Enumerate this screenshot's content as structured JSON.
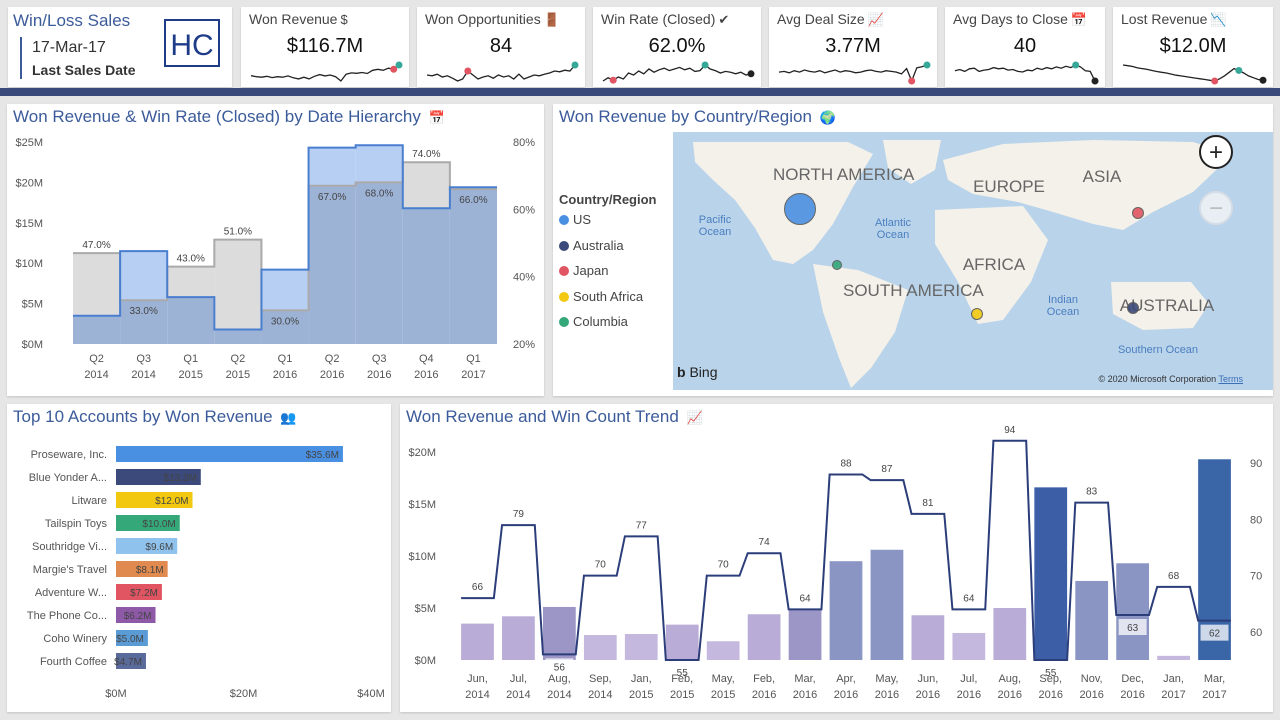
{
  "header": {
    "title": "Win/Loss Sales",
    "date": "17-Mar-17",
    "date_caption": "Last Sales Date",
    "logo_text": "HC"
  },
  "kpis": [
    {
      "title": "Won Revenue",
      "icon": "dollar-icon",
      "glyph": "$",
      "value": "$116.7M",
      "spark": [
        45,
        40,
        38,
        42,
        36,
        40,
        38,
        44,
        35,
        30,
        38,
        30,
        42,
        50,
        44,
        48,
        40,
        20,
        52,
        58,
        56,
        60,
        55,
        70,
        75,
        70,
        80,
        75,
        95
      ],
      "markers": [
        {
          "i": 27,
          "color": "#e05561"
        },
        {
          "i": 28,
          "color": "#35a89a"
        }
      ]
    },
    {
      "title": "Won Opportunities",
      "icon": "door-icon",
      "glyph": "🚪",
      "value": "84",
      "spark": [
        60,
        58,
        62,
        55,
        58,
        52,
        45,
        50,
        70,
        60,
        50,
        55,
        58,
        52,
        60,
        55,
        58,
        50,
        62,
        50,
        55,
        60,
        58,
        62,
        65,
        70,
        68,
        72,
        70,
        85
      ],
      "markers": [
        {
          "i": 8,
          "color": "#e05561"
        },
        {
          "i": 29,
          "color": "#35a89a"
        }
      ]
    },
    {
      "title": "Win Rate (Closed)",
      "icon": "check-icon",
      "glyph": "✔",
      "value": "62.0%",
      "spark": [
        40,
        48,
        42,
        50,
        45,
        60,
        55,
        65,
        58,
        70,
        62,
        68,
        72,
        66,
        70,
        74,
        68,
        72,
        64,
        66,
        80,
        70,
        66,
        60,
        64,
        62,
        58,
        62,
        55,
        58
      ],
      "markers": [
        {
          "i": 2,
          "color": "#e05561"
        },
        {
          "i": 20,
          "color": "#35a89a"
        },
        {
          "i": 29,
          "color": "#222"
        }
      ]
    },
    {
      "title": "Avg Deal Size",
      "icon": "trend-chart-icon",
      "glyph": "📈",
      "value": "3.77M",
      "spark": [
        60,
        62,
        58,
        64,
        60,
        66,
        62,
        60,
        64,
        58,
        62,
        66,
        60,
        64,
        62,
        58,
        60,
        64,
        66,
        62,
        60,
        64,
        62,
        60,
        55,
        70,
        35,
        72,
        75,
        80
      ],
      "markers": [
        {
          "i": 26,
          "color": "#e05561"
        },
        {
          "i": 29,
          "color": "#35a89a"
        }
      ]
    },
    {
      "title": "Avg Days to Close",
      "icon": "calendar-icon",
      "glyph": "📅",
      "value": "40",
      "spark": [
        62,
        66,
        60,
        68,
        70,
        60,
        64,
        66,
        72,
        68,
        70,
        64,
        66,
        60,
        58,
        64,
        62,
        70,
        66,
        72,
        68,
        74,
        70,
        76,
        72,
        80,
        74,
        62,
        60,
        30
      ],
      "markers": [
        {
          "i": 25,
          "color": "#35a89a"
        },
        {
          "i": 29,
          "color": "#222"
        }
      ]
    },
    {
      "title": "Lost Revenue",
      "icon": "down-trend-icon",
      "glyph": "📉",
      "value": "$12.0M",
      "spark": [
        80,
        78,
        76,
        72,
        70,
        68,
        65,
        62,
        60,
        58,
        55,
        52,
        50,
        48,
        46,
        44,
        42,
        40,
        38,
        36,
        42,
        50,
        60,
        70,
        65,
        58,
        50,
        45,
        40,
        38
      ],
      "markers": [
        {
          "i": 19,
          "color": "#e05561"
        },
        {
          "i": 24,
          "color": "#35a89a"
        },
        {
          "i": 29,
          "color": "#222"
        }
      ]
    }
  ],
  "panels": {
    "date_hierarchy": {
      "title": "Won Revenue & Win Rate (Closed) by Date Hierarchy",
      "icon": "calendar-icon",
      "glyph": "📅"
    },
    "map": {
      "title": "Won Revenue by Country/Region",
      "icon": "globe-icon",
      "glyph": "🌍"
    },
    "top_accounts": {
      "title": "Top 10 Accounts by Won Revenue",
      "icon": "people-icon",
      "glyph": "👥"
    },
    "trend": {
      "title": "Won Revenue and Win Count Trend",
      "icon": "trend-chart-icon",
      "glyph": "📈"
    }
  },
  "map": {
    "legend_title": "Country/Region",
    "legend": [
      {
        "name": "US",
        "color": "#4a90e2"
      },
      {
        "name": "Australia",
        "color": "#3b4a7a"
      },
      {
        "name": "Japan",
        "color": "#e05561"
      },
      {
        "name": "South Africa",
        "color": "#f2c811"
      },
      {
        "name": "Columbia",
        "color": "#35a87a"
      }
    ],
    "continents": [
      "NORTH AMERICA",
      "EUROPE",
      "ASIA",
      "AFRICA",
      "SOUTH AMERICA",
      "AUSTRALIA"
    ],
    "oceans": [
      "Pacific Ocean",
      "Atlantic Ocean",
      "Indian Ocean",
      "Southern Ocean"
    ],
    "bing": "Bing",
    "copyright": "© 2020 Microsoft Corporation",
    "terms": "Terms",
    "zoom_in": "+",
    "zoom_out": "−"
  },
  "chart_data": [
    {
      "type": "bar",
      "title": "Won Revenue & Win Rate (Closed) by Date Hierarchy",
      "categories": [
        "Q2 2014",
        "Q3 2014",
        "Q1 2015",
        "Q2 2015",
        "Q1 2016",
        "Q2 2016",
        "Q3 2016",
        "Q4 2016",
        "Q1 2017"
      ],
      "cat_line1": [
        "Q2",
        "Q3",
        "Q1",
        "Q2",
        "Q1",
        "Q2",
        "Q3",
        "Q4",
        "Q1"
      ],
      "cat_line2": [
        "2014",
        "2014",
        "2015",
        "2015",
        "2016",
        "2016",
        "2016",
        "2016",
        "2017"
      ],
      "series": [
        {
          "name": "Won Revenue",
          "values": [
            3.5,
            11.5,
            5.8,
            1.8,
            9.2,
            24.3,
            24.6,
            16.8,
            19.4
          ],
          "unit": "$M"
        },
        {
          "name": "Win Rate (Closed)",
          "values": [
            47.0,
            33.0,
            43.0,
            51.0,
            30.0,
            67.0,
            68.0,
            74.0,
            66.0
          ],
          "unit": "%"
        }
      ],
      "rate_labels": [
        "47.0%",
        "33.0%",
        "43.0%",
        "51.0%",
        "30.0%",
        "67.0%",
        "68.0%",
        "74.0%",
        "66.0%"
      ],
      "y_left_ticks": [
        "$0M",
        "$5M",
        "$10M",
        "$15M",
        "$20M",
        "$25M"
      ],
      "y_right_ticks": [
        "20%",
        "40%",
        "60%",
        "80%"
      ],
      "ylim": [
        0,
        25
      ],
      "y2lim": [
        20,
        80
      ]
    },
    {
      "type": "bar",
      "title": "Top 10 Accounts by Won Revenue",
      "orientation": "horizontal",
      "categories": [
        "Proseware, Inc.",
        "Blue Yonder A...",
        "Litware",
        "Tailspin Toys",
        "Southridge Vi...",
        "Margie's Travel",
        "Adventure W...",
        "The Phone Co...",
        "Coho Winery",
        "Fourth Coffee"
      ],
      "values": [
        35.6,
        13.3,
        12.0,
        10.0,
        9.6,
        8.1,
        7.2,
        6.2,
        5.0,
        4.7
      ],
      "labels": [
        "$35.6M",
        "$13.3M",
        "$12.0M",
        "$10.0M",
        "$9.6M",
        "$8.1M",
        "$7.2M",
        "$6.2M",
        "$5.0M",
        "$4.7M"
      ],
      "colors": [
        "#4a90e2",
        "#3b4a7a",
        "#f2c811",
        "#35a87a",
        "#8fc3ee",
        "#e08a4f",
        "#e05561",
        "#8e5aa8",
        "#5b9bd5",
        "#5a6a9a"
      ],
      "x_ticks": [
        "$0M",
        "$20M",
        "$40M"
      ],
      "xlim": [
        0,
        40
      ]
    },
    {
      "type": "bar",
      "title": "Won Revenue and Win Count Trend",
      "categories": [
        "Jun, 2014",
        "Jul, 2014",
        "Aug, 2014",
        "Sep, 2014",
        "Jan, 2015",
        "Feb, 2015",
        "May, 2015",
        "Feb, 2016",
        "Mar, 2016",
        "Apr, 2016",
        "May, 2016",
        "Jun, 2016",
        "Jul, 2016",
        "Aug, 2016",
        "Sep, 2016",
        "Nov, 2016",
        "Dec, 2016",
        "Jan, 2017",
        "Mar, 2017"
      ],
      "cat_line1": [
        "Jun,",
        "Jul,",
        "Aug,",
        "Sep,",
        "Jan,",
        "Feb,",
        "May,",
        "Feb,",
        "Mar,",
        "Apr,",
        "May,",
        "Jun,",
        "Jul,",
        "Aug,",
        "Sep,",
        "Nov,",
        "Dec,",
        "Jan,",
        "Mar,"
      ],
      "cat_line2": [
        "2014",
        "2014",
        "2014",
        "2014",
        "2015",
        "2015",
        "2015",
        "2016",
        "2016",
        "2016",
        "2016",
        "2016",
        "2016",
        "2016",
        "2016",
        "2016",
        "2016",
        "2017",
        "2017"
      ],
      "series": [
        {
          "name": "Won Revenue",
          "values": [
            3.5,
            4.2,
            5.1,
            2.4,
            2.5,
            3.4,
            1.8,
            4.4,
            4.8,
            9.5,
            10.6,
            4.3,
            2.6,
            5.0,
            16.6,
            7.6,
            9.3,
            0.4,
            19.3
          ],
          "unit": "$M"
        },
        {
          "name": "Win Count",
          "values": [
            66,
            79,
            56,
            70,
            77,
            55,
            70,
            74,
            64,
            88,
            87,
            81,
            64,
            94,
            55,
            83,
            63,
            68,
            62
          ]
        }
      ],
      "bar_colors": [
        "#b9acd6",
        "#b9acd6",
        "#9c96c6",
        "#c4b8de",
        "#c4b8de",
        "#b9acd6",
        "#c4b8de",
        "#b9acd6",
        "#9c96c6",
        "#8a95c4",
        "#8a95c4",
        "#b9acd6",
        "#c4b8de",
        "#b9acd6",
        "#3b5ea6",
        "#8a95c4",
        "#8a95c4",
        "#c4b8de",
        "#3a66a8"
      ],
      "y_left_ticks": [
        "$0M",
        "$5M",
        "$10M",
        "$15M",
        "$20M"
      ],
      "y_right_ticks": [
        "60",
        "70",
        "80",
        "90"
      ],
      "ylim": [
        0,
        20
      ],
      "y2lim": [
        55,
        92
      ]
    }
  ]
}
